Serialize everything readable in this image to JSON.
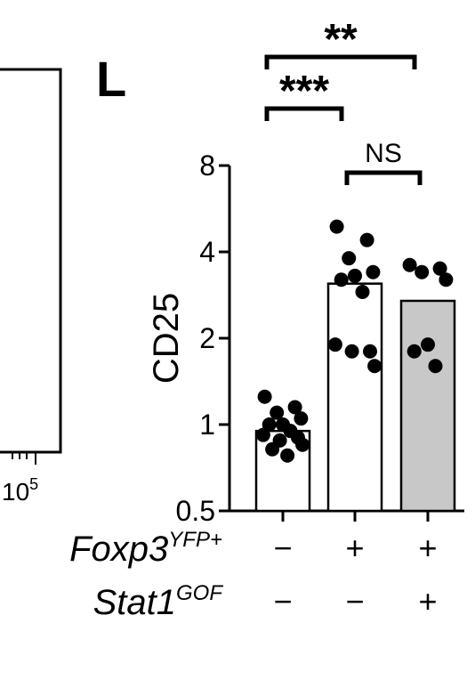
{
  "panel_letter": "L",
  "left_panel": {
    "tick_label_base": "10",
    "tick_label_exp": "5"
  },
  "chart_data": {
    "type": "bar",
    "scale": "log2",
    "ylabel": "CD25",
    "ylim": [
      0.5,
      8
    ],
    "yticks": [
      {
        "value": 0.5,
        "label": "0.5"
      },
      {
        "value": 1,
        "label": "1"
      },
      {
        "value": 2,
        "label": "2"
      },
      {
        "value": 4,
        "label": "4"
      },
      {
        "value": 8,
        "label": "8"
      }
    ],
    "categories": [
      "Foxp3 YFP− / Stat1 GOF−",
      "Foxp3 YFP+ / Stat1 GOF−",
      "Foxp3 YFP+ / Stat1 GOF+"
    ],
    "values": [
      0.95,
      3.1,
      2.7
    ],
    "bar_colors": [
      "#ffffff",
      "#ffffff",
      "#c8c8c8"
    ],
    "points": [
      [
        1.25,
        1.15,
        1.1,
        1.05,
        1.0,
        1.0,
        0.95,
        0.92,
        0.9,
        0.88,
        0.85,
        0.82,
        0.78
      ],
      [
        4.9,
        4.4,
        3.8,
        3.4,
        3.3,
        3.2,
        2.9,
        1.9,
        1.8,
        1.8,
        1.6
      ],
      [
        3.6,
        3.5,
        3.4,
        3.2,
        1.9,
        1.8,
        1.6
      ]
    ],
    "significance": [
      {
        "from": 0,
        "to": 1,
        "label": "***"
      },
      {
        "from": 0,
        "to": 2,
        "label": "**"
      },
      {
        "from": 1,
        "to": 2,
        "label": "NS"
      }
    ],
    "genotype_rows": [
      {
        "base": "Foxp3",
        "sup": "YFP+",
        "signs": [
          "−",
          "+",
          "+"
        ]
      },
      {
        "base": "Stat1",
        "sup": "GOF",
        "signs": [
          "−",
          "−",
          "+"
        ]
      }
    ]
  }
}
